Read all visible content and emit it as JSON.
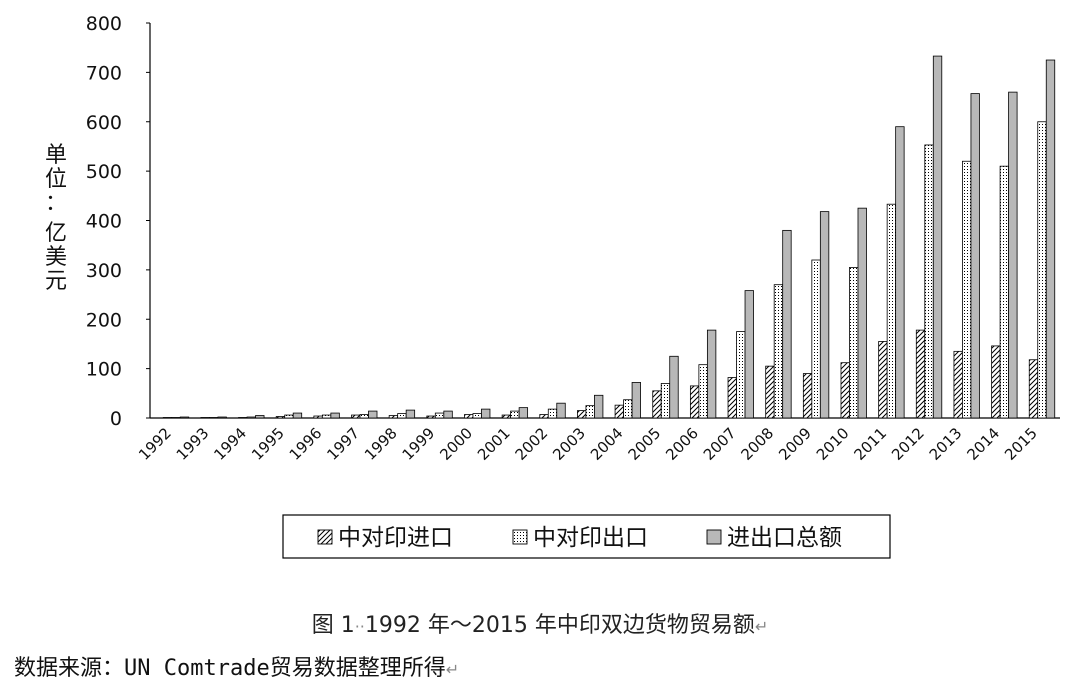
{
  "chart_data": {
    "type": "bar",
    "ylabel_lines": [
      "单",
      "位",
      "：",
      "亿",
      "美",
      "元"
    ],
    "ylim": [
      0,
      800
    ],
    "yticks": [
      0,
      100,
      200,
      300,
      400,
      500,
      600,
      700,
      800
    ],
    "grid": false,
    "legend_position": "bottom-center",
    "categories": [
      "1992",
      "1993",
      "1994",
      "1995",
      "1996",
      "1997",
      "1998",
      "1999",
      "2000",
      "2001",
      "2002",
      "2003",
      "2004",
      "2005",
      "2006",
      "2007",
      "2008",
      "2009",
      "2010",
      "2011",
      "2012",
      "2013",
      "2014",
      "2015"
    ],
    "series": [
      {
        "name": "中对印进口",
        "pattern": "hatch",
        "values": [
          1,
          1,
          1,
          3,
          4,
          6,
          5,
          4,
          7,
          6,
          7,
          15,
          26,
          55,
          65,
          82,
          105,
          90,
          112,
          155,
          178,
          135,
          146,
          118
        ]
      },
      {
        "name": "中对印出口",
        "pattern": "dots",
        "values": [
          1,
          1,
          2,
          6,
          6,
          7,
          9,
          10,
          9,
          14,
          18,
          25,
          37,
          70,
          108,
          175,
          270,
          320,
          305,
          433,
          553,
          520,
          510,
          600
        ]
      },
      {
        "name": "进出口总额",
        "pattern": "gray",
        "values": [
          2,
          2,
          5,
          10,
          10,
          14,
          16,
          14,
          18,
          21,
          30,
          46,
          72,
          125,
          178,
          258,
          380,
          418,
          425,
          590,
          733,
          657,
          660,
          725
        ]
      }
    ],
    "colors": {
      "gray_fill": "#b8b8b8",
      "outline": "#000000",
      "axis": "#000000"
    }
  },
  "caption": {
    "fig_label": "图 1",
    "text": "1992 年～2015 年中印双边货物贸易额"
  },
  "source": {
    "prefix": "数据来源：",
    "mono": "UN Comtrade",
    "suffix": "贸易数据整理所得"
  }
}
